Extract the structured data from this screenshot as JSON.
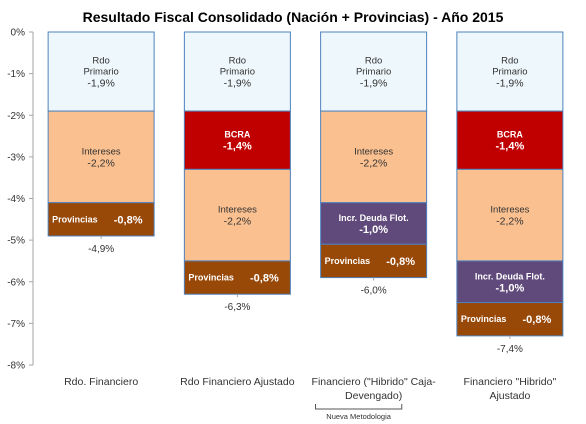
{
  "chart_data": {
    "type": "bar",
    "title": "Resultado Fiscal Consolidado (Nación + Provincias) -  Año 2015",
    "xlabel": "",
    "ylabel": "",
    "ylim": [
      -8,
      0
    ],
    "y_ticks": [
      "0%",
      "-1%",
      "-2%",
      "-3%",
      "-4%",
      "-5%",
      "-6%",
      "-7%",
      "-8%"
    ],
    "grid": false,
    "legend": "none",
    "categories": [
      "Rdo. Financiero",
      "Rdo Financiero Ajustado",
      "Financiero (\"Hibrido\" Caja-Devengado)",
      "Financiero \"Hibrido\" Ajustado"
    ],
    "category_lines": [
      [
        "Rdo. Financiero"
      ],
      [
        "Rdo Financiero Ajustado"
      ],
      [
        "Financiero (\"Hibrido\" Caja-",
        "Devengado)"
      ],
      [
        "Financiero \"Hibrido\"",
        "Ajustado"
      ]
    ],
    "bracket_label": "Nueva Metodologia",
    "bracket_categories": [
      2,
      3
    ],
    "stacks": [
      {
        "total_label": "-4,9%",
        "segments": [
          {
            "label_lines": [
              "Rdo",
              "Primario"
            ],
            "value_label": "-1,9%",
            "value": -1.9,
            "color": "#eef8fc",
            "label_color": "#333333",
            "bold": false,
            "layout": "stack"
          },
          {
            "label_lines": [
              "Intereses"
            ],
            "value_label": "-2,2%",
            "value": -2.2,
            "color": "#fac090",
            "label_color": "#333333",
            "bold": false,
            "layout": "stack"
          },
          {
            "label_lines": [
              "Provincias"
            ],
            "value_label": "-0,8%",
            "value": -0.8,
            "color": "#984807",
            "label_color": "#ffffff",
            "bold": true,
            "layout": "inline"
          }
        ]
      },
      {
        "total_label": "-6,3%",
        "segments": [
          {
            "label_lines": [
              "Rdo",
              "Primario"
            ],
            "value_label": "-1,9%",
            "value": -1.9,
            "color": "#eef8fc",
            "label_color": "#333333",
            "bold": false,
            "layout": "stack"
          },
          {
            "label_lines": [
              "BCRA"
            ],
            "value_label": "-1,4%",
            "value": -1.4,
            "color": "#c00000",
            "label_color": "#ffffff",
            "bold": true,
            "layout": "stack"
          },
          {
            "label_lines": [
              "Intereses"
            ],
            "value_label": "-2,2%",
            "value": -2.2,
            "color": "#fac090",
            "label_color": "#333333",
            "bold": false,
            "layout": "stack"
          },
          {
            "label_lines": [
              "Provincias"
            ],
            "value_label": "-0,8%",
            "value": -0.8,
            "color": "#984807",
            "label_color": "#ffffff",
            "bold": true,
            "layout": "inline"
          }
        ]
      },
      {
        "total_label": "-6,0%",
        "segments": [
          {
            "label_lines": [
              "Rdo",
              "Primario"
            ],
            "value_label": "-1,9%",
            "value": -1.9,
            "color": "#eef8fc",
            "label_color": "#333333",
            "bold": false,
            "layout": "stack"
          },
          {
            "label_lines": [
              "Intereses"
            ],
            "value_label": "-2,2%",
            "value": -2.2,
            "color": "#fac090",
            "label_color": "#333333",
            "bold": false,
            "layout": "stack"
          },
          {
            "label_lines": [
              "Incr. Deuda Flot."
            ],
            "value_label": "-1,0%",
            "value": -1.0,
            "color": "#604a7b",
            "label_color": "#ffffff",
            "bold": true,
            "layout": "stack"
          },
          {
            "label_lines": [
              "Provincias"
            ],
            "value_label": "-0,8%",
            "value": -0.8,
            "color": "#984807",
            "label_color": "#ffffff",
            "bold": true,
            "layout": "inline"
          }
        ]
      },
      {
        "total_label": "-7,4%",
        "segments": [
          {
            "label_lines": [
              "Rdo",
              "Primario"
            ],
            "value_label": "-1,9%",
            "value": -1.9,
            "color": "#eef8fc",
            "label_color": "#333333",
            "bold": false,
            "layout": "stack"
          },
          {
            "label_lines": [
              "BCRA"
            ],
            "value_label": "-1,4%",
            "value": -1.4,
            "color": "#c00000",
            "label_color": "#ffffff",
            "bold": true,
            "layout": "stack"
          },
          {
            "label_lines": [
              "Intereses"
            ],
            "value_label": "-2,2%",
            "value": -2.2,
            "color": "#fac090",
            "label_color": "#333333",
            "bold": false,
            "layout": "stack"
          },
          {
            "label_lines": [
              "Incr. Deuda Flot."
            ],
            "value_label": "-1,0%",
            "value": -1.0,
            "color": "#604a7b",
            "label_color": "#ffffff",
            "bold": true,
            "layout": "stack"
          },
          {
            "label_lines": [
              "Provincias"
            ],
            "value_label": "-0,8%",
            "value": -0.8,
            "color": "#984807",
            "label_color": "#ffffff",
            "bold": true,
            "layout": "inline"
          }
        ]
      }
    ],
    "colors": {
      "segment_border": "#4f81bd",
      "axis": "#a6a6a6",
      "tick_text": "#333333",
      "title": "#000000"
    }
  }
}
